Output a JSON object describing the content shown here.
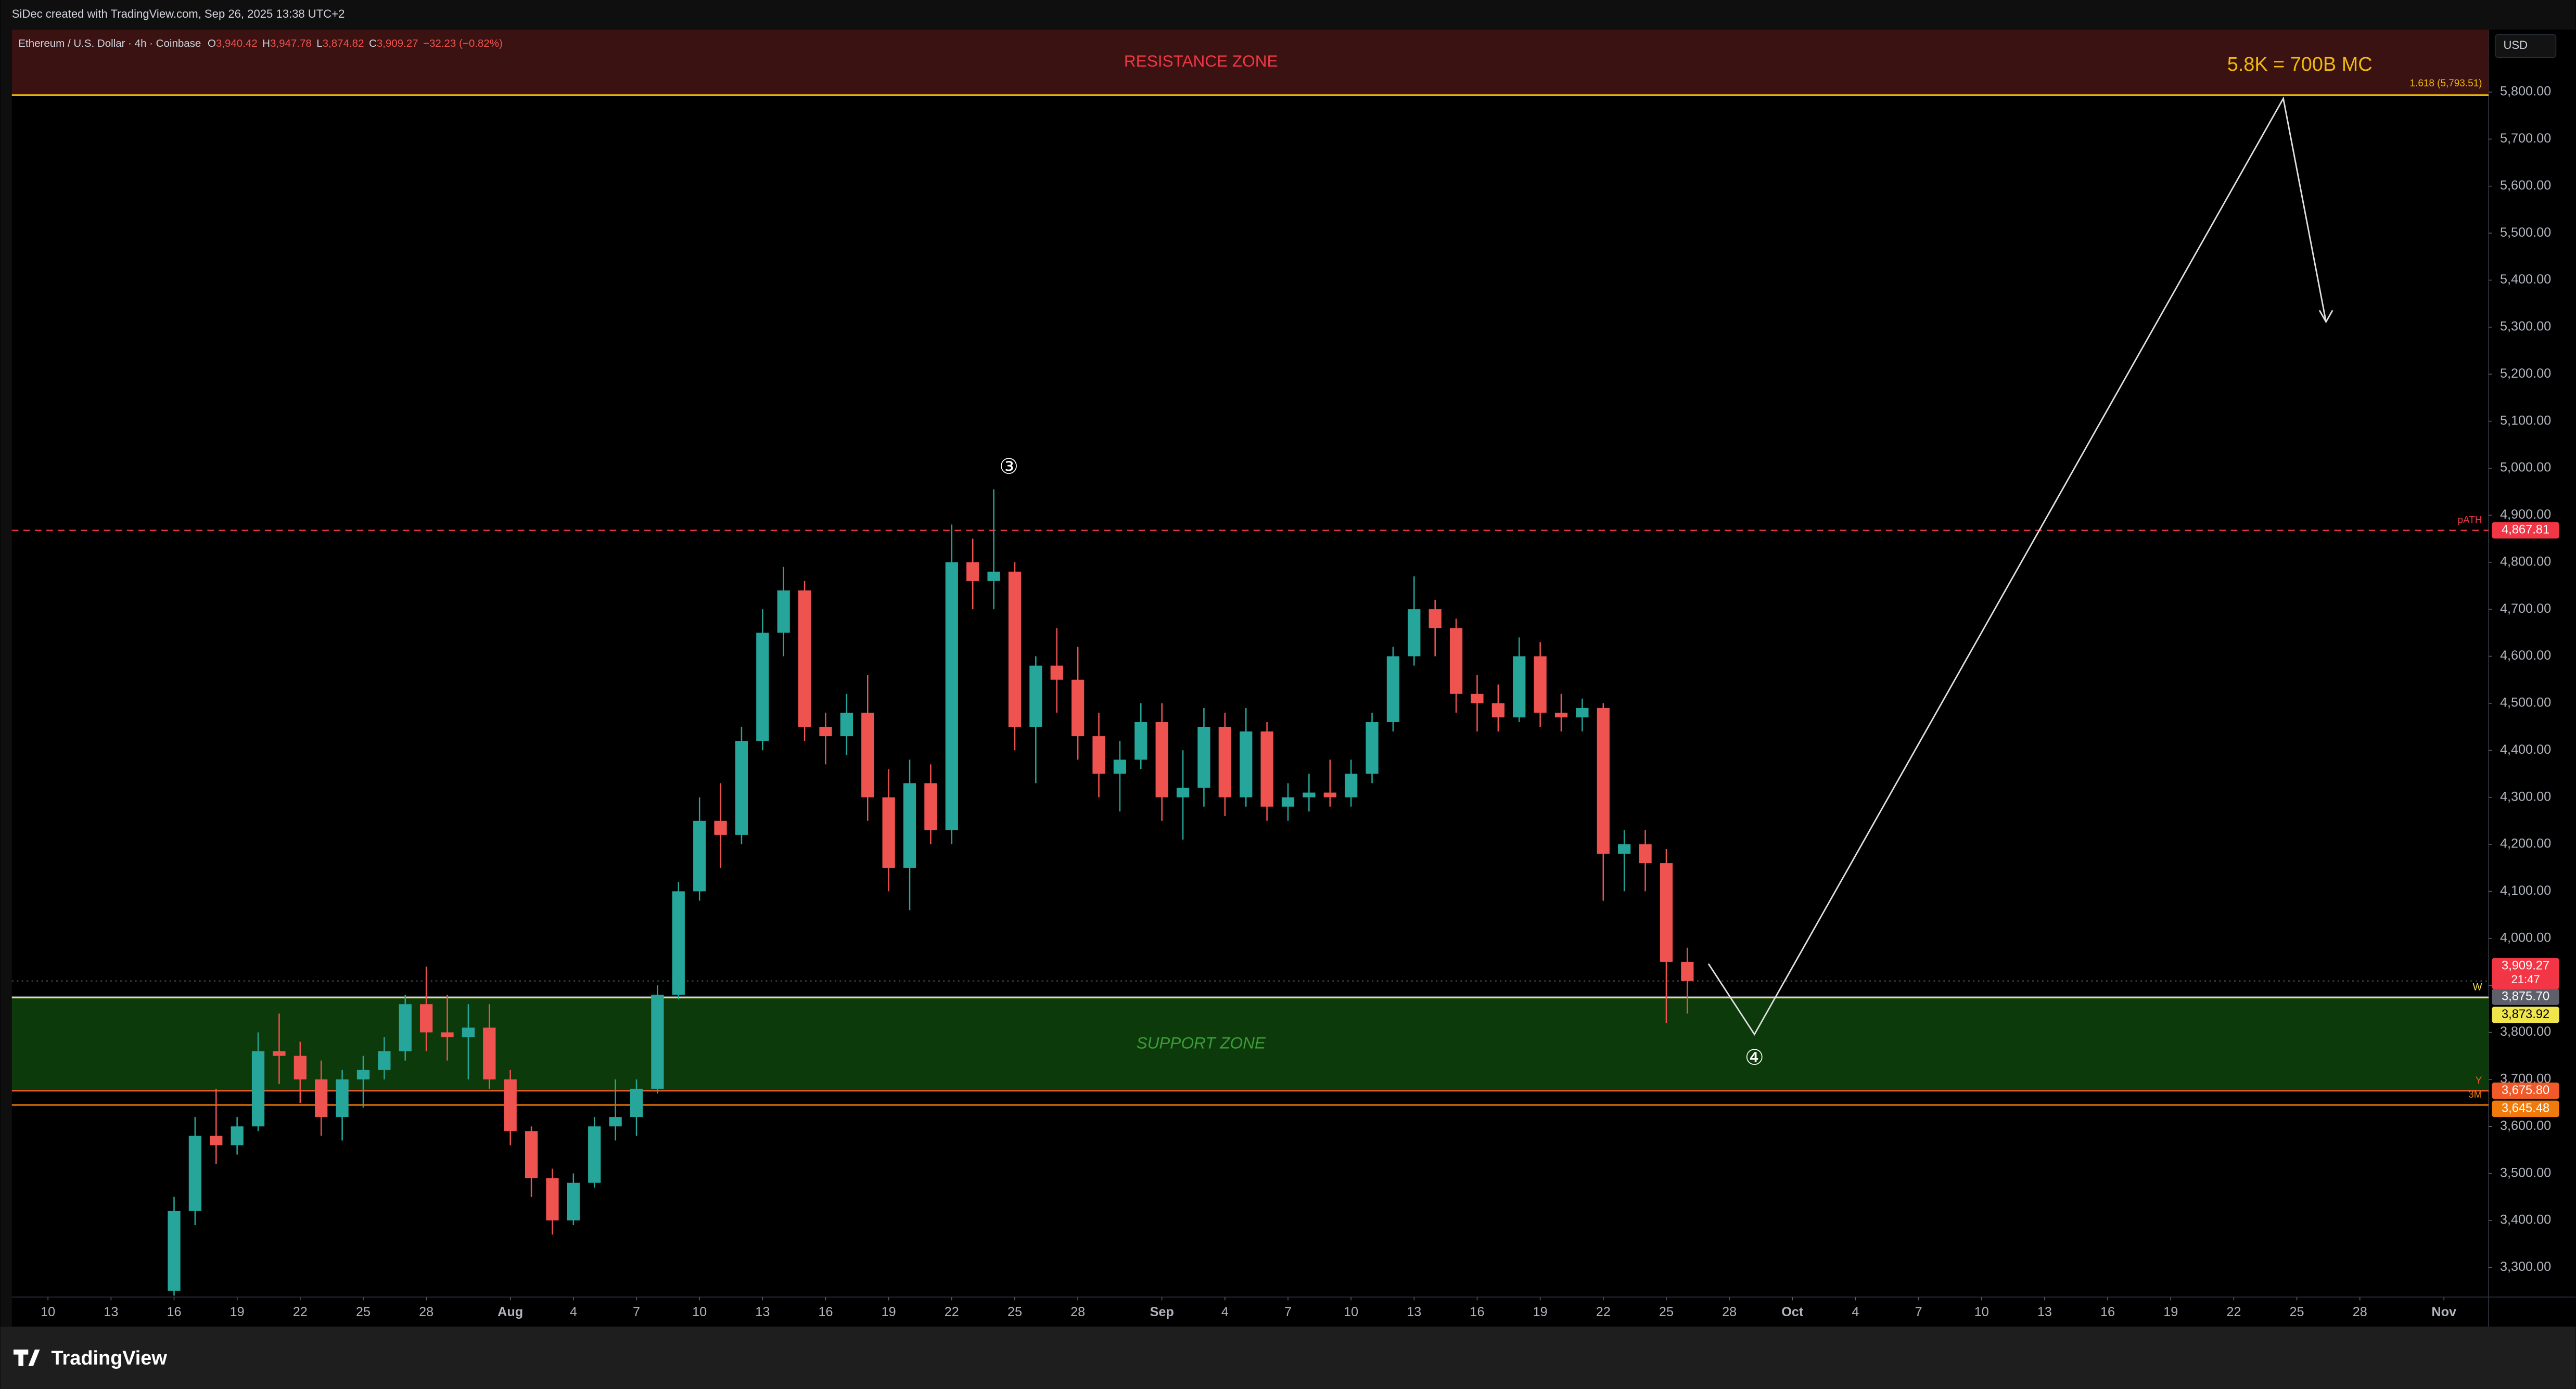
{
  "credit": "SiDec created with TradingView.com, Sep 26, 2025 13:38 UTC+2",
  "brand": "TradingView",
  "currency": "USD",
  "chart_data": {
    "type": "candlestick",
    "title": "Ethereum / U.S. Dollar · 4h · Coinbase",
    "ohlc_header": [
      {
        "key": "O",
        "value": "3,940.42"
      },
      {
        "key": "H",
        "value": "3,947.78"
      },
      {
        "key": "L",
        "value": "3,874.82"
      },
      {
        "key": "C",
        "value": "3,909.27"
      }
    ],
    "change": "−32.23 (−0.82%)",
    "up_color": "#26a69a",
    "down_color": "#ef5350",
    "x": [
      "Jul 16",
      "Jul 17",
      "Jul 18",
      "Jul 19",
      "Jul 20",
      "Jul 21",
      "Jul 22",
      "Jul 23",
      "Jul 24",
      "Jul 25",
      "Jul 26",
      "Jul 27",
      "Jul 28",
      "Jul 29",
      "Jul 30",
      "Jul 31",
      "Aug 1",
      "Aug 2",
      "Aug 3",
      "Aug 4",
      "Aug 5",
      "Aug 6",
      "Aug 7",
      "Aug 8",
      "Aug 9",
      "Aug 10",
      "Aug 11",
      "Aug 12",
      "Aug 13",
      "Aug 14",
      "Aug 15",
      "Aug 16",
      "Aug 17",
      "Aug 18",
      "Aug 19",
      "Aug 20",
      "Aug 21",
      "Aug 22",
      "Aug 23",
      "Aug 24",
      "Aug 25",
      "Aug 26",
      "Aug 27",
      "Aug 28",
      "Aug 29",
      "Aug 30",
      "Aug 31",
      "Sep 1",
      "Sep 2",
      "Sep 3",
      "Sep 4",
      "Sep 5",
      "Sep 6",
      "Sep 7",
      "Sep 8",
      "Sep 9",
      "Sep 10",
      "Sep 11",
      "Sep 12",
      "Sep 13",
      "Sep 14",
      "Sep 15",
      "Sep 16",
      "Sep 17",
      "Sep 18",
      "Sep 19",
      "Sep 20",
      "Sep 21",
      "Sep 22",
      "Sep 23",
      "Sep 24",
      "Sep 25",
      "Sep 26"
    ],
    "open": [
      3250,
      3420,
      3580,
      3560,
      3600,
      3760,
      3750,
      3700,
      3620,
      3700,
      3720,
      3760,
      3860,
      3800,
      3790,
      3810,
      3700,
      3590,
      3490,
      3400,
      3480,
      3600,
      3620,
      3680,
      3880,
      4100,
      4250,
      4220,
      4420,
      4650,
      4740,
      4450,
      4430,
      4480,
      4300,
      4150,
      4330,
      4230,
      4800,
      4760,
      4780,
      4450,
      4580,
      4550,
      4430,
      4350,
      4380,
      4460,
      4300,
      4320,
      4450,
      4300,
      4440,
      4280,
      4300,
      4310,
      4300,
      4350,
      4460,
      4600,
      4700,
      4660,
      4520,
      4500,
      4470,
      4600,
      4480,
      4470,
      4490,
      4180,
      4200,
      4160,
      3950
    ],
    "high": [
      3450,
      3620,
      3680,
      3620,
      3800,
      3840,
      3780,
      3740,
      3720,
      3750,
      3790,
      3880,
      3940,
      3880,
      3860,
      3860,
      3720,
      3600,
      3510,
      3500,
      3620,
      3700,
      3700,
      3900,
      4120,
      4300,
      4330,
      4450,
      4700,
      4790,
      4760,
      4480,
      4520,
      4560,
      4360,
      4380,
      4370,
      4880,
      4850,
      4955,
      4800,
      4600,
      4660,
      4620,
      4480,
      4420,
      4500,
      4500,
      4400,
      4490,
      4480,
      4490,
      4460,
      4330,
      4350,
      4380,
      4380,
      4480,
      4620,
      4770,
      4720,
      4680,
      4560,
      4540,
      4640,
      4630,
      4520,
      4510,
      4500,
      4230,
      4230,
      4190,
      3980
    ],
    "low": [
      3240,
      3390,
      3520,
      3540,
      3590,
      3690,
      3650,
      3580,
      3570,
      3640,
      3700,
      3740,
      3760,
      3740,
      3700,
      3680,
      3560,
      3450,
      3370,
      3390,
      3470,
      3570,
      3580,
      3670,
      3870,
      4080,
      4150,
      4200,
      4400,
      4600,
      4420,
      4370,
      4390,
      4250,
      4100,
      4060,
      4200,
      4200,
      4700,
      4700,
      4400,
      4330,
      4480,
      4380,
      4300,
      4270,
      4360,
      4250,
      4210,
      4280,
      4260,
      4280,
      4250,
      4250,
      4270,
      4280,
      4280,
      4330,
      4440,
      4580,
      4600,
      4480,
      4440,
      4440,
      4460,
      4450,
      4440,
      4440,
      4080,
      4100,
      4100,
      3820,
      3840
    ],
    "close": [
      3420,
      3580,
      3560,
      3600,
      3760,
      3750,
      3700,
      3620,
      3700,
      3720,
      3760,
      3860,
      3800,
      3790,
      3810,
      3700,
      3590,
      3490,
      3400,
      3480,
      3600,
      3620,
      3680,
      3880,
      4100,
      4250,
      4220,
      4420,
      4650,
      4740,
      4450,
      4430,
      4480,
      4300,
      4150,
      4330,
      4230,
      4800,
      4760,
      4780,
      4450,
      4580,
      4550,
      4430,
      4350,
      4380,
      4460,
      4300,
      4320,
      4450,
      4300,
      4440,
      4280,
      4300,
      4310,
      4300,
      4350,
      4460,
      4600,
      4700,
      4660,
      4520,
      4500,
      4470,
      4600,
      4480,
      4470,
      4490,
      4180,
      4200,
      4160,
      3950,
      3909.27
    ],
    "xlim": [
      "Jul 8",
      "Nov 5"
    ],
    "xticks": [
      {
        "value": "Jul 10",
        "label": "10"
      },
      {
        "value": "Jul 13",
        "label": "13"
      },
      {
        "value": "Jul 16",
        "label": "16"
      },
      {
        "value": "Jul 19",
        "label": "19"
      },
      {
        "value": "Jul 22",
        "label": "22"
      },
      {
        "value": "Jul 25",
        "label": "25"
      },
      {
        "value": "Jul 28",
        "label": "28"
      },
      {
        "value": "Aug 1",
        "label": "Aug"
      },
      {
        "value": "Aug 4",
        "label": "4"
      },
      {
        "value": "Aug 7",
        "label": "7"
      },
      {
        "value": "Aug 10",
        "label": "10"
      },
      {
        "value": "Aug 13",
        "label": "13"
      },
      {
        "value": "Aug 16",
        "label": "16"
      },
      {
        "value": "Aug 19",
        "label": "19"
      },
      {
        "value": "Aug 22",
        "label": "22"
      },
      {
        "value": "Aug 25",
        "label": "25"
      },
      {
        "value": "Aug 28",
        "label": "28"
      },
      {
        "value": "Sep 1",
        "label": "Sep"
      },
      {
        "value": "Sep 4",
        "label": "4"
      },
      {
        "value": "Sep 7",
        "label": "7"
      },
      {
        "value": "Sep 10",
        "label": "10"
      },
      {
        "value": "Sep 13",
        "label": "13"
      },
      {
        "value": "Sep 16",
        "label": "16"
      },
      {
        "value": "Sep 19",
        "label": "19"
      },
      {
        "value": "Sep 22",
        "label": "22"
      },
      {
        "value": "Sep 25",
        "label": "25"
      },
      {
        "value": "Sep 28",
        "label": "28"
      },
      {
        "value": "Oct 1",
        "label": "Oct"
      },
      {
        "value": "Oct 4",
        "label": "4"
      },
      {
        "value": "Oct 7",
        "label": "7"
      },
      {
        "value": "Oct 10",
        "label": "10"
      },
      {
        "value": "Oct 13",
        "label": "13"
      },
      {
        "value": "Oct 16",
        "label": "16"
      },
      {
        "value": "Oct 19",
        "label": "19"
      },
      {
        "value": "Oct 22",
        "label": "22"
      },
      {
        "value": "Oct 25",
        "label": "25"
      },
      {
        "value": "Oct 28",
        "label": "28"
      },
      {
        "value": "Nov 1",
        "label": "Nov"
      }
    ],
    "ylim": [
      3237,
      5933
    ],
    "yticks": [
      {
        "value": 3300,
        "label": "3,300.00"
      },
      {
        "value": 3400,
        "label": "3,400.00"
      },
      {
        "value": 3500,
        "label": "3,500.00"
      },
      {
        "value": 3600,
        "label": "3,600.00"
      },
      {
        "value": 3700,
        "label": "3,700.00"
      },
      {
        "value": 3800,
        "label": "3,800.00"
      },
      {
        "value": 3900,
        "label": "3,900.00"
      },
      {
        "value": 4000,
        "label": "4,000.00"
      },
      {
        "value": 4100,
        "label": "4,100.00"
      },
      {
        "value": 4200,
        "label": "4,200.00"
      },
      {
        "value": 4300,
        "label": "4,300.00"
      },
      {
        "value": 4400,
        "label": "4,400.00"
      },
      {
        "value": 4500,
        "label": "4,500.00"
      },
      {
        "value": 4600,
        "label": "4,600.00"
      },
      {
        "value": 4700,
        "label": "4,700.00"
      },
      {
        "value": 4800,
        "label": "4,800.00"
      },
      {
        "value": 4900,
        "label": "4,900.00"
      },
      {
        "value": 5000,
        "label": "5,000.00"
      },
      {
        "value": 5100,
        "label": "5,100.00"
      },
      {
        "value": 5200,
        "label": "5,200.00"
      },
      {
        "value": 5300,
        "label": "5,300.00"
      },
      {
        "value": 5400,
        "label": "5,400.00"
      },
      {
        "value": 5500,
        "label": "5,500.00"
      },
      {
        "value": 5600,
        "label": "5,600.00"
      },
      {
        "value": 5700,
        "label": "5,700.00"
      },
      {
        "value": 5800,
        "label": "5,800.00"
      }
    ],
    "grid": false,
    "zones": [
      {
        "label": "RESISTANCE ZONE",
        "range": [
          5793.51,
          5933
        ],
        "color": "#3a1212",
        "text_color": "#f23645"
      },
      {
        "label": "SUPPORT ZONE",
        "range": [
          3675.8,
          3873.92
        ],
        "color": "#0d3a0a",
        "text_color": "#3d9c3a"
      }
    ],
    "fib_level": {
      "value": 5793.51,
      "label": "1.618 (5,793.51)",
      "color": "#f0b90b"
    },
    "levels": [
      {
        "value": 4867.81,
        "label": "4,867.81",
        "tag": "pATH",
        "color": "#f23645",
        "dashed": true
      },
      {
        "value": 3875.7,
        "label": "3,875.70",
        "color": "#5d606b"
      },
      {
        "value": 3873.92,
        "label": "3,873.92",
        "tag": "W",
        "color": "#f0e54a"
      },
      {
        "value": 3675.8,
        "label": "3,675.80",
        "tag": "Y",
        "color": "#f05a28"
      },
      {
        "value": 3645.48,
        "label": "3,645.48",
        "tag": "3M",
        "color": "#f07a0b"
      }
    ],
    "last_price": {
      "value": 3909.27,
      "label": "3,909.27",
      "countdown": "21:47",
      "color": "#f23645"
    },
    "annotations": {
      "target": "5.8K = 700B MC",
      "wave3": "③",
      "wave4": "④"
    }
  }
}
